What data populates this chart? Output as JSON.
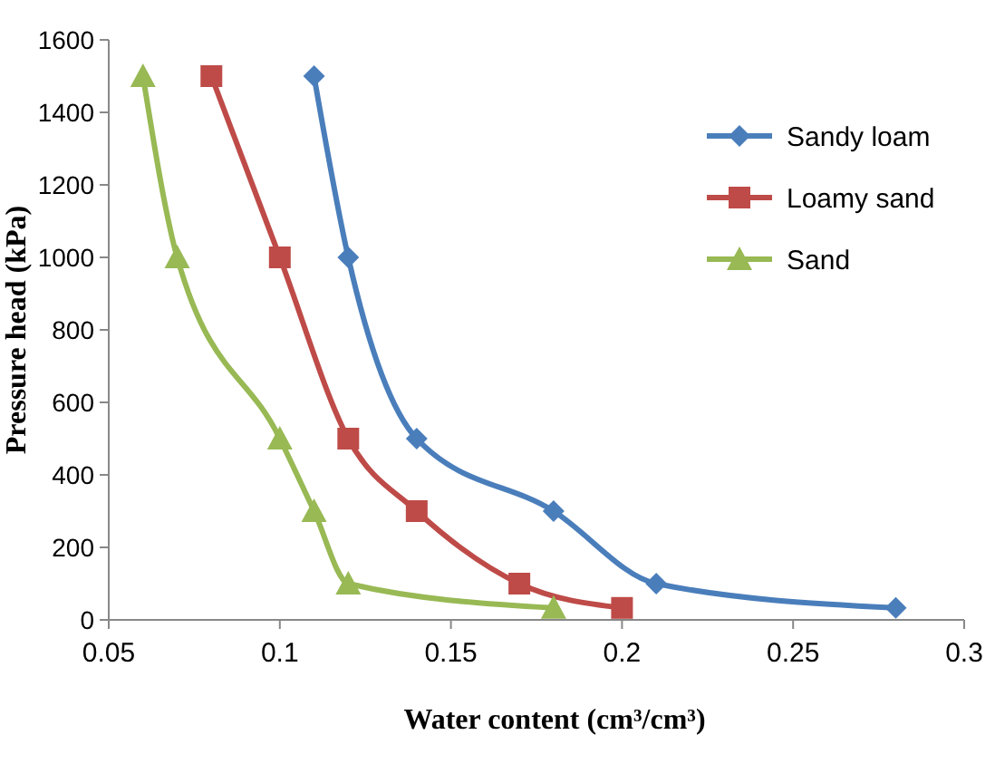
{
  "chart_data": {
    "type": "line",
    "xlabel": "Water content (cm³/cm³)",
    "ylabel": "Pressure head (kPa)",
    "xlim": [
      0.05,
      0.3
    ],
    "xticks": [
      0.05,
      0.1,
      0.15,
      0.2,
      0.25,
      0.3
    ],
    "ylim": [
      0,
      1600
    ],
    "yticks": [
      0,
      200,
      400,
      600,
      800,
      1000,
      1200,
      1400,
      1600
    ],
    "grid": false,
    "legend": "right",
    "series": [
      {
        "name": "Sandy loam",
        "color": "#4a7ebb",
        "marker": "diamond",
        "x": [
          0.11,
          0.12,
          0.14,
          0.18,
          0.21,
          0.28
        ],
        "values": [
          1500,
          1000,
          500,
          300,
          100,
          33
        ]
      },
      {
        "name": "Loamy sand",
        "color": "#be4b48",
        "marker": "square",
        "x": [
          0.08,
          0.1,
          0.12,
          0.14,
          0.17,
          0.2
        ],
        "values": [
          1500,
          1000,
          500,
          300,
          100,
          33
        ]
      },
      {
        "name": "Sand",
        "color": "#98b954",
        "marker": "triangle",
        "x": [
          0.06,
          0.07,
          0.1,
          0.11,
          0.12,
          0.18
        ],
        "values": [
          1500,
          1000,
          500,
          300,
          100,
          33
        ]
      }
    ]
  }
}
